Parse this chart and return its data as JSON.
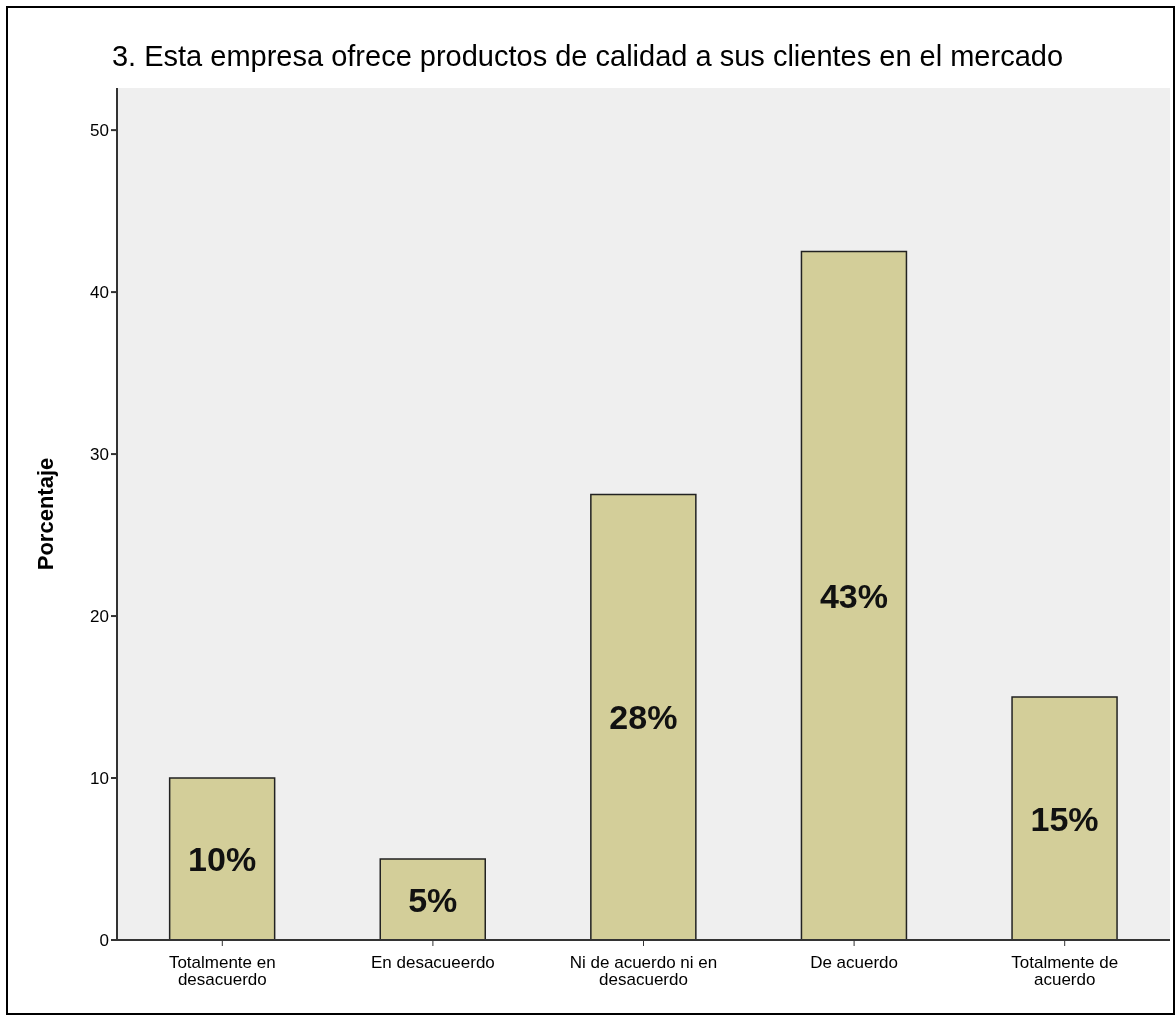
{
  "chart_data": {
    "type": "bar",
    "title": "3. Esta empresa ofrece productos de calidad a sus clientes en el mercado",
    "ylabel": "Porcentaje",
    "categories": [
      "Totalmente en desacuerdo",
      "En desacueerdo",
      "Ni de acuerdo ni en desacuerdo",
      "De acuerdo",
      "Totalmente de acuerdo"
    ],
    "values": [
      10,
      5,
      27.5,
      42.5,
      15
    ],
    "value_labels": [
      "10%",
      "5%",
      "28%",
      "43%",
      "15%"
    ],
    "color": "#d3ce99",
    "ylim": [
      0,
      52.6
    ],
    "yticks": [
      0,
      10,
      20,
      30,
      40,
      50
    ],
    "grid": false
  }
}
